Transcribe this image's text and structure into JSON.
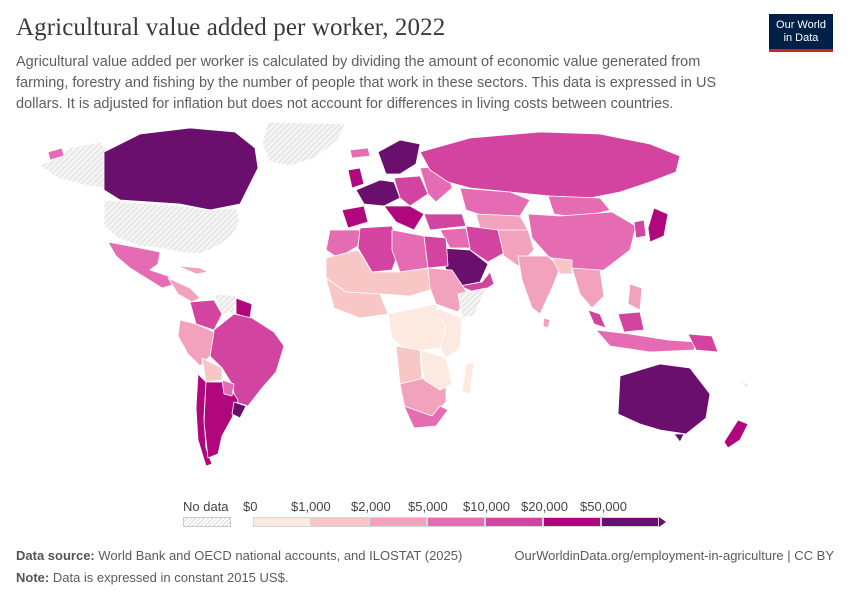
{
  "header": {
    "title": "Agricultural value added per worker, 2022",
    "subtitle": "Agricultural value added per worker is calculated by dividing the amount of economic value generated from farming, forestry and fishing by the number of people that work in these sectors. This data is expressed in US dollars. It is adjusted for inflation but does not account for differences in living costs between countries."
  },
  "logo": {
    "line1": "Our World",
    "line2": "in Data"
  },
  "legend": {
    "no_data_label": "No data",
    "thresholds": [
      "$0",
      "$1,000",
      "$2,000",
      "$5,000",
      "$10,000",
      "$20,000",
      "$50,000"
    ],
    "bin_colors": [
      "#fce9df",
      "#f8c6c5",
      "#f2a2bd",
      "#e56cb2",
      "#d2449f",
      "#b0077d",
      "#6b0f6e"
    ]
  },
  "footer": {
    "source_label": "Data source:",
    "source_text": "World Bank and OECD national accounts, and ILOSTAT (2025)",
    "note_label": "Note:",
    "note_text": "Data is expressed in constant 2015 US$.",
    "url": "OurWorldinData.org/employment-in-agriculture | CC BY"
  },
  "colors": {
    "no_data_fill": "#f2f2f2",
    "border": "#ffffff"
  }
}
